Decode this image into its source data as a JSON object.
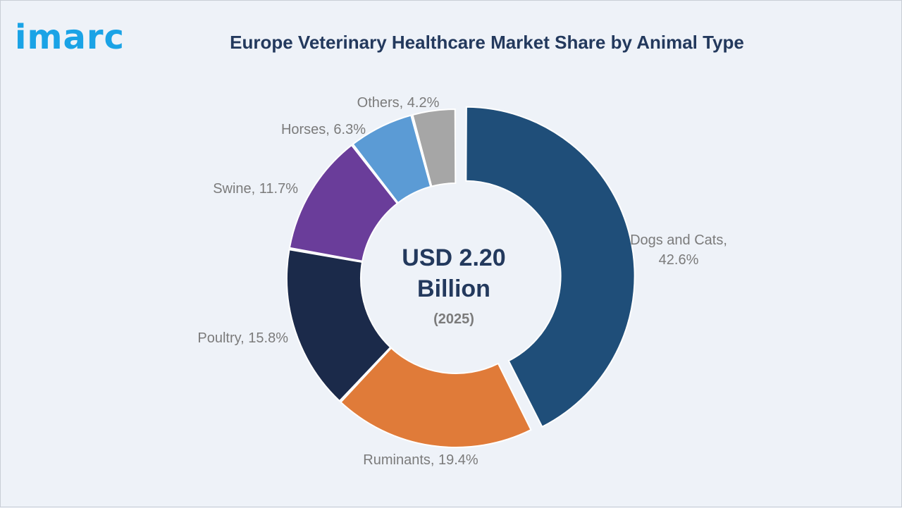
{
  "brand": {
    "logo_text": "imarc",
    "logo_color": "#1aa3e6"
  },
  "chart_data": {
    "type": "pie",
    "variant": "donut",
    "title": "Europe Veterinary Healthcare Market Share by Animal Type",
    "center": {
      "value_line1": "USD 2.20",
      "value_line2": "Billion",
      "year": "(2025)"
    },
    "slices": [
      {
        "name": "Dogs and Cats",
        "value": 42.6,
        "label_line1": "Dogs and Cats,",
        "label_line2": "42.6%",
        "color": "#1f4e79",
        "exploded": true
      },
      {
        "name": "Ruminants",
        "value": 19.4,
        "label_line1": "Ruminants, 19.4%",
        "label_line2": "",
        "color": "#e07b39",
        "exploded": false
      },
      {
        "name": "Poultry",
        "value": 15.8,
        "label_line1": "Poultry, 15.8%",
        "label_line2": "",
        "color": "#1b2a4a",
        "exploded": false
      },
      {
        "name": "Swine",
        "value": 11.7,
        "label_line1": "Swine, 11.7%",
        "label_line2": "",
        "color": "#6a3d9a",
        "exploded": false
      },
      {
        "name": "Horses",
        "value": 6.3,
        "label_line1": "Horses, 6.3%",
        "label_line2": "",
        "color": "#5b9bd5",
        "exploded": false
      },
      {
        "name": "Others",
        "value": 4.2,
        "label_line1": "Others, 4.2%",
        "label_line2": "",
        "color": "#a6a6a6",
        "exploded": false
      }
    ]
  }
}
